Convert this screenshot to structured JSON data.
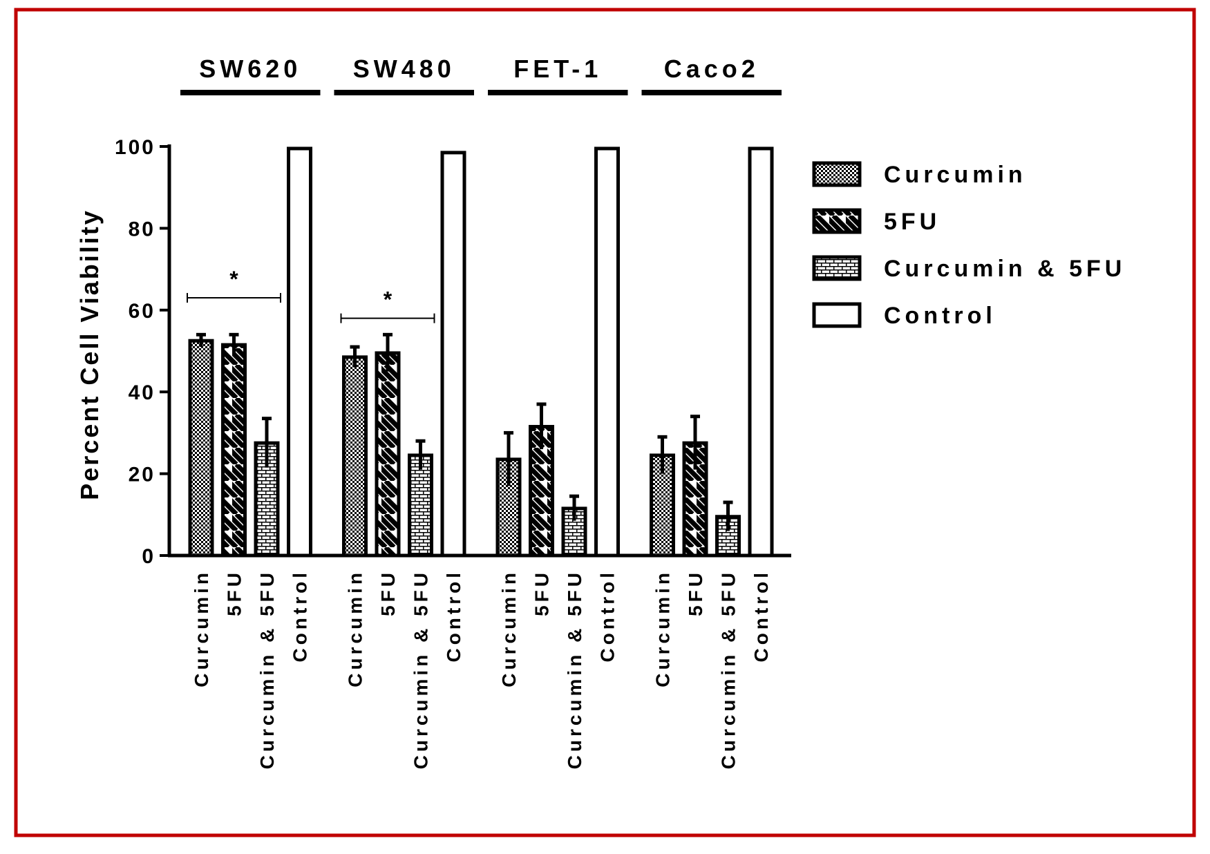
{
  "frame_color": "#c00000",
  "chart_data": {
    "type": "bar",
    "ylabel": "Percent Cell Viability",
    "xlabel": "",
    "ylim": [
      0,
      100
    ],
    "yticks": [
      0,
      20,
      40,
      60,
      80,
      100
    ],
    "groups": [
      "SW620",
      "SW480",
      "FET-1",
      "Caco2"
    ],
    "categories": [
      "Curcumin",
      "5FU",
      "Curcumin & 5FU",
      "Control"
    ],
    "series": [
      {
        "group": "SW620",
        "values": [
          52.5,
          51.5,
          27.5,
          99.5
        ],
        "errors": [
          1.5,
          2.5,
          6.0,
          0
        ]
      },
      {
        "group": "SW480",
        "values": [
          48.5,
          49.5,
          24.5,
          98.5
        ],
        "errors": [
          2.5,
          4.5,
          3.5,
          0
        ]
      },
      {
        "group": "FET-1",
        "values": [
          23.5,
          31.5,
          11.5,
          99.5
        ],
        "errors": [
          6.5,
          5.5,
          3.0,
          0
        ]
      },
      {
        "group": "Caco2",
        "values": [
          24.5,
          27.5,
          9.5,
          99.5
        ],
        "errors": [
          4.5,
          6.5,
          3.5,
          0
        ]
      }
    ],
    "legend": {
      "position": "right",
      "items": [
        "Curcumin",
        "5FU",
        "Curcumin & 5FU",
        "Control"
      ],
      "patterns": [
        "checker",
        "diagonal-stripes",
        "brick",
        "empty"
      ]
    },
    "annotations": [
      {
        "text": "*",
        "group": "SW620",
        "from": "Curcumin",
        "to": "Curcumin & 5FU",
        "y": 63
      },
      {
        "text": "*",
        "group": "SW480",
        "from": "Curcumin",
        "to": "Curcumin & 5FU",
        "y": 58
      }
    ]
  }
}
